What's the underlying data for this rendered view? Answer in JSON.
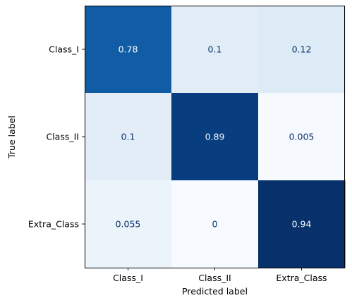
{
  "chart_data": {
    "type": "heatmap",
    "title": "",
    "xlabel": "Predicted label",
    "ylabel": "True label",
    "x_categories": [
      "Class_I",
      "Class_II",
      "Extra_Class"
    ],
    "y_categories": [
      "Class_I",
      "Class_II",
      "Extra_Class"
    ],
    "cell_labels": [
      [
        "0.78",
        "0.1",
        "0.12"
      ],
      [
        "0.1",
        "0.89",
        "0.005"
      ],
      [
        "0.055",
        "0",
        "0.94"
      ]
    ],
    "values": [
      [
        0.78,
        0.1,
        0.12
      ],
      [
        0.1,
        0.89,
        0.005
      ],
      [
        0.055,
        0,
        0.94
      ]
    ],
    "colormap": "Blues",
    "value_range": [
      0,
      0.94
    ],
    "grid": false,
    "legend": "none"
  }
}
